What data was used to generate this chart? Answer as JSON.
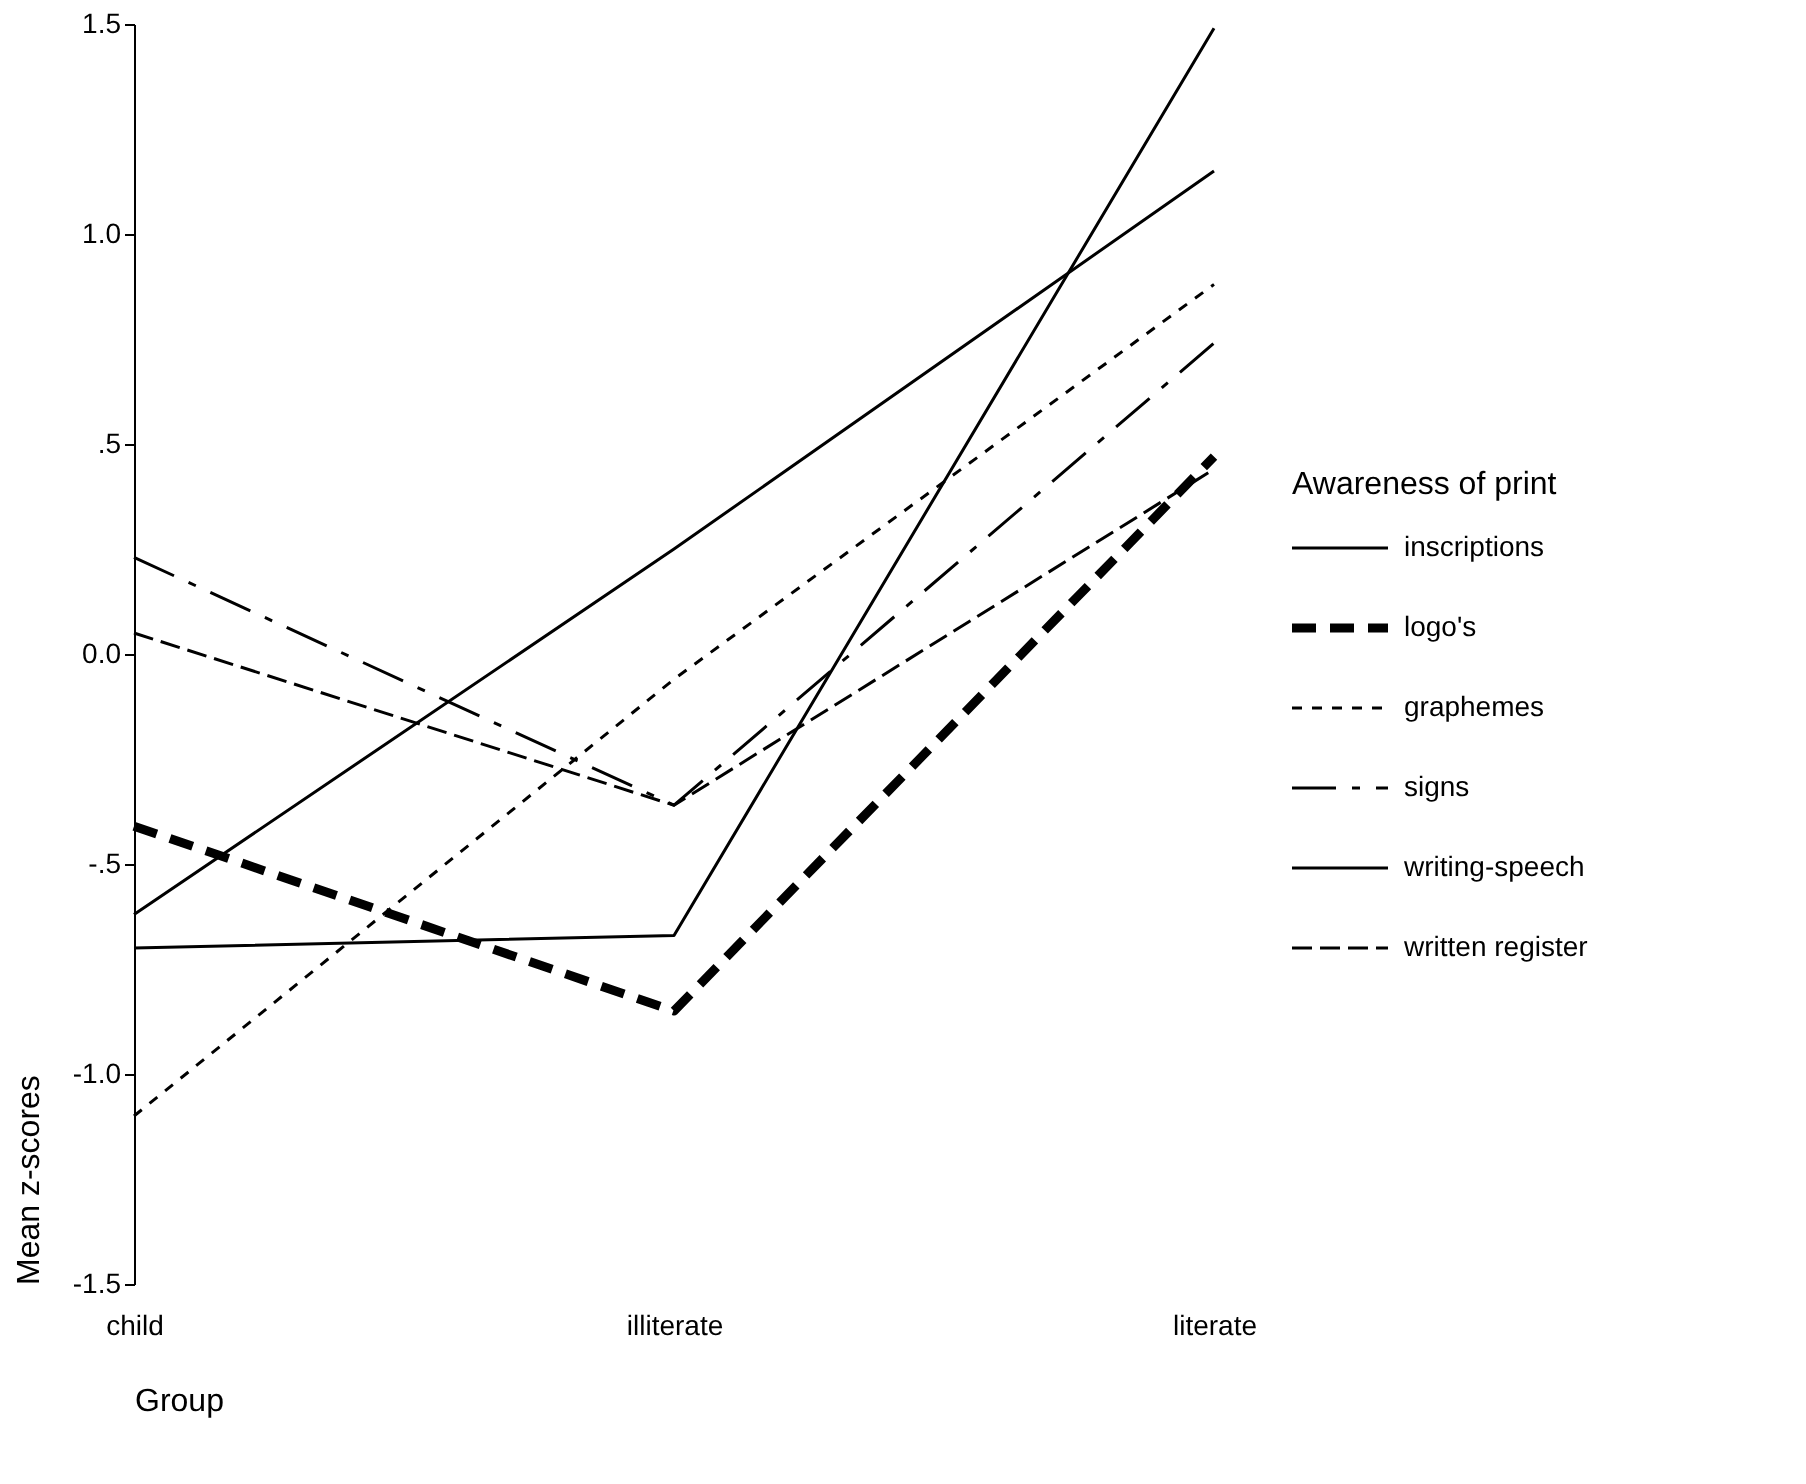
{
  "chart_data": {
    "type": "line",
    "xlabel": "Group",
    "ylabel": "Mean z-scores",
    "legend_title": "Awareness of print",
    "legend": "right",
    "categories": [
      "child",
      "illiterate",
      "literate"
    ],
    "ylim": [
      -1.5,
      1.5
    ],
    "yticks": [
      {
        "value": -1.5,
        "label": "-1.5"
      },
      {
        "value": -1.0,
        "label": "-1.0"
      },
      {
        "value": -0.5,
        "label": "-.5"
      },
      {
        "value": 0.0,
        "label": "0.0"
      },
      {
        "value": 0.5,
        "label": ".5"
      },
      {
        "value": 1.0,
        "label": "1.0"
      },
      {
        "value": 1.5,
        "label": "1.5"
      }
    ],
    "grid": false,
    "marker": "none",
    "series": [
      {
        "name": "inscriptions",
        "color": "#000000",
        "line_style": "solid",
        "values": [
          -0.62,
          0.25,
          1.15
        ]
      },
      {
        "name": "logo's",
        "color": "#000000",
        "line_style": "bold-dashed",
        "values": [
          -0.41,
          -0.85,
          0.47
        ]
      },
      {
        "name": "graphemes",
        "color": "#000000",
        "line_style": "dotted",
        "values": [
          -1.1,
          -0.06,
          0.88
        ]
      },
      {
        "name": "signs",
        "color": "#000000",
        "line_style": "dashdot",
        "values": [
          0.23,
          -0.36,
          0.74
        ]
      },
      {
        "name": "writing-speech",
        "color": "#000000",
        "line_style": "solid",
        "values": [
          -0.7,
          -0.67,
          1.49
        ]
      },
      {
        "name": "written register",
        "color": "#000000",
        "line_style": "dashed",
        "values": [
          0.05,
          -0.36,
          0.44
        ]
      }
    ]
  }
}
